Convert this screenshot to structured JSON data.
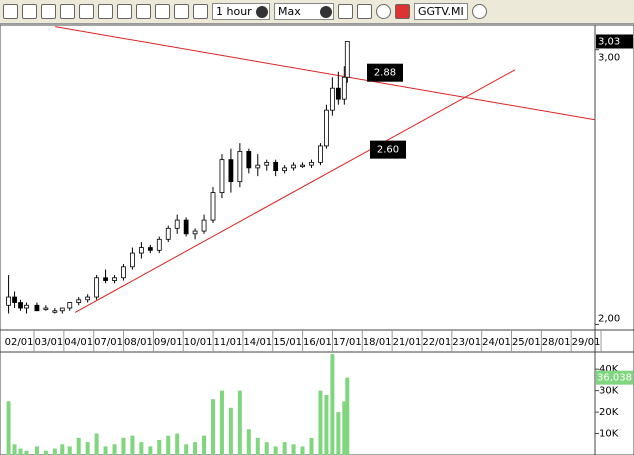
{
  "toolbar": {
    "interval": "1 hour",
    "range": "Max",
    "symbol": "GGTV.MI"
  },
  "chart_data": {
    "type": "candlestick",
    "categories": [
      "02/01",
      "03/01",
      "04/01",
      "07/01",
      "08/01",
      "09/01",
      "10/01",
      "11/01",
      "14/01",
      "15/01",
      "16/01",
      "17/01",
      "18/01",
      "21/01",
      "22/01",
      "23/01",
      "24/01",
      "25/01",
      "28/01",
      "29/01"
    ],
    "xlim": [
      -0.47,
      19.3
    ],
    "x": [
      -0.35,
      -0.15,
      0.05,
      0.25,
      0.6,
      0.9,
      1.2,
      1.45,
      1.7,
      2.0,
      2.3,
      2.6,
      2.9,
      3.2,
      3.5,
      3.8,
      4.1,
      4.4,
      4.7,
      5.0,
      5.3,
      5.6,
      5.9,
      6.2,
      6.5,
      6.8,
      7.1,
      7.4,
      7.7,
      8.0,
      8.3,
      8.6,
      8.9,
      9.2,
      9.5,
      9.8,
      10.1,
      10.3,
      10.5,
      10.7,
      10.9,
      11.0
    ],
    "open": [
      2.07,
      2.1,
      2.08,
      2.06,
      2.07,
      2.06,
      2.05,
      2.05,
      2.06,
      2.08,
      2.09,
      2.1,
      2.17,
      2.16,
      2.17,
      2.21,
      2.26,
      2.28,
      2.27,
      2.31,
      2.35,
      2.38,
      2.33,
      2.34,
      2.38,
      2.48,
      2.6,
      2.52,
      2.63,
      2.57,
      2.58,
      2.59,
      2.56,
      2.57,
      2.58,
      2.58,
      2.59,
      2.65,
      2.78,
      2.86,
      2.82,
      2.9
    ],
    "high": [
      2.18,
      2.12,
      2.09,
      2.08,
      2.08,
      2.07,
      2.06,
      2.06,
      2.08,
      2.1,
      2.11,
      2.18,
      2.2,
      2.18,
      2.22,
      2.28,
      2.3,
      2.29,
      2.32,
      2.36,
      2.4,
      2.39,
      2.35,
      2.4,
      2.5,
      2.62,
      2.64,
      2.66,
      2.64,
      2.62,
      2.6,
      2.6,
      2.58,
      2.59,
      2.59,
      2.6,
      2.66,
      2.8,
      2.9,
      2.92,
      2.94,
      3.03
    ],
    "low": [
      2.04,
      2.06,
      2.05,
      2.04,
      2.05,
      2.05,
      2.04,
      2.04,
      2.05,
      2.07,
      2.08,
      2.09,
      2.15,
      2.15,
      2.16,
      2.2,
      2.24,
      2.26,
      2.26,
      2.3,
      2.33,
      2.32,
      2.31,
      2.33,
      2.37,
      2.46,
      2.48,
      2.5,
      2.55,
      2.54,
      2.56,
      2.54,
      2.55,
      2.56,
      2.57,
      2.57,
      2.58,
      2.64,
      2.76,
      2.8,
      2.8,
      2.88
    ],
    "close": [
      2.1,
      2.08,
      2.06,
      2.07,
      2.05,
      2.06,
      2.05,
      2.06,
      2.08,
      2.09,
      2.1,
      2.17,
      2.16,
      2.17,
      2.21,
      2.26,
      2.28,
      2.27,
      2.31,
      2.35,
      2.38,
      2.33,
      2.34,
      2.38,
      2.48,
      2.6,
      2.52,
      2.63,
      2.57,
      2.58,
      2.59,
      2.56,
      2.57,
      2.58,
      2.58,
      2.59,
      2.65,
      2.78,
      2.86,
      2.82,
      2.9,
      3.03
    ],
    "volume": [
      25000,
      5000,
      3000,
      2000,
      4000,
      2000,
      3000,
      5000,
      4000,
      8000,
      6000,
      10000,
      4000,
      5000,
      8000,
      9000,
      6000,
      4000,
      7000,
      9000,
      10000,
      5000,
      6000,
      9000,
      26000,
      30000,
      22000,
      30000,
      12000,
      8000,
      6000,
      4000,
      6000,
      5000,
      4000,
      8000,
      30000,
      28000,
      47000,
      20000,
      25000,
      36038
    ],
    "ylim": [
      1.98,
      3.09
    ],
    "yticks": [
      {
        "value": 3,
        "label": "3,00"
      },
      {
        "value": 2,
        "label": "2,00"
      }
    ],
    "last_price": {
      "value": 3.03,
      "label": "3,03"
    },
    "trendlines": [
      {
        "x": [
          1.21,
          19.3
        ],
        "y": [
          3.084,
          2.745
        ]
      },
      {
        "x": [
          1.88,
          16.62
        ],
        "y": [
          2.044,
          2.927
        ]
      }
    ],
    "annotations": [
      {
        "value": 2.88,
        "label": "2.88"
      },
      {
        "value": 2.6,
        "label": "2.60"
      }
    ],
    "vlim": [
      0,
      48000
    ],
    "vticks": [
      {
        "value": 40000,
        "label": "40K"
      },
      {
        "value": 30000,
        "label": "30K"
      },
      {
        "value": 20000,
        "label": "20K"
      },
      {
        "value": 10000,
        "label": "10K"
      }
    ],
    "last_volume": {
      "value": 36038,
      "label": "36,038"
    }
  }
}
